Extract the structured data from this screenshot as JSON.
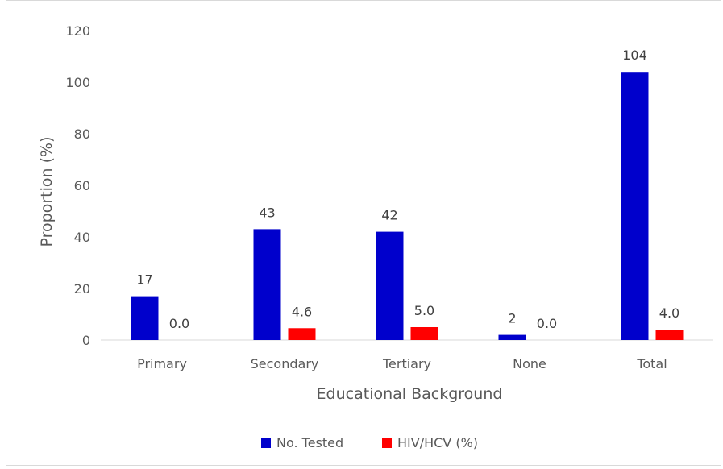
{
  "chart_data": {
    "type": "bar",
    "title": "",
    "xlabel": "Educational Background",
    "ylabel": "Proportion (%)",
    "ylim": [
      0,
      120
    ],
    "yticks": [
      0,
      20,
      40,
      60,
      80,
      100,
      120
    ],
    "categories": [
      "Primary",
      "Secondary",
      "Tertiary",
      "None",
      "Total"
    ],
    "series": [
      {
        "name": "No. Tested",
        "color": "#0000cc",
        "values": [
          17,
          43,
          42,
          2,
          104
        ],
        "labels": [
          "17",
          "43",
          "42",
          "2",
          "104"
        ]
      },
      {
        "name": "HIV/HCV (%)",
        "color": "#ff0000",
        "values": [
          0.0,
          4.6,
          5.0,
          0.0,
          4.0
        ],
        "labels": [
          "0.0",
          "4.6",
          "5.0",
          "0.0",
          "4.0"
        ]
      }
    ],
    "grid": false,
    "legend_position": "bottom"
  }
}
